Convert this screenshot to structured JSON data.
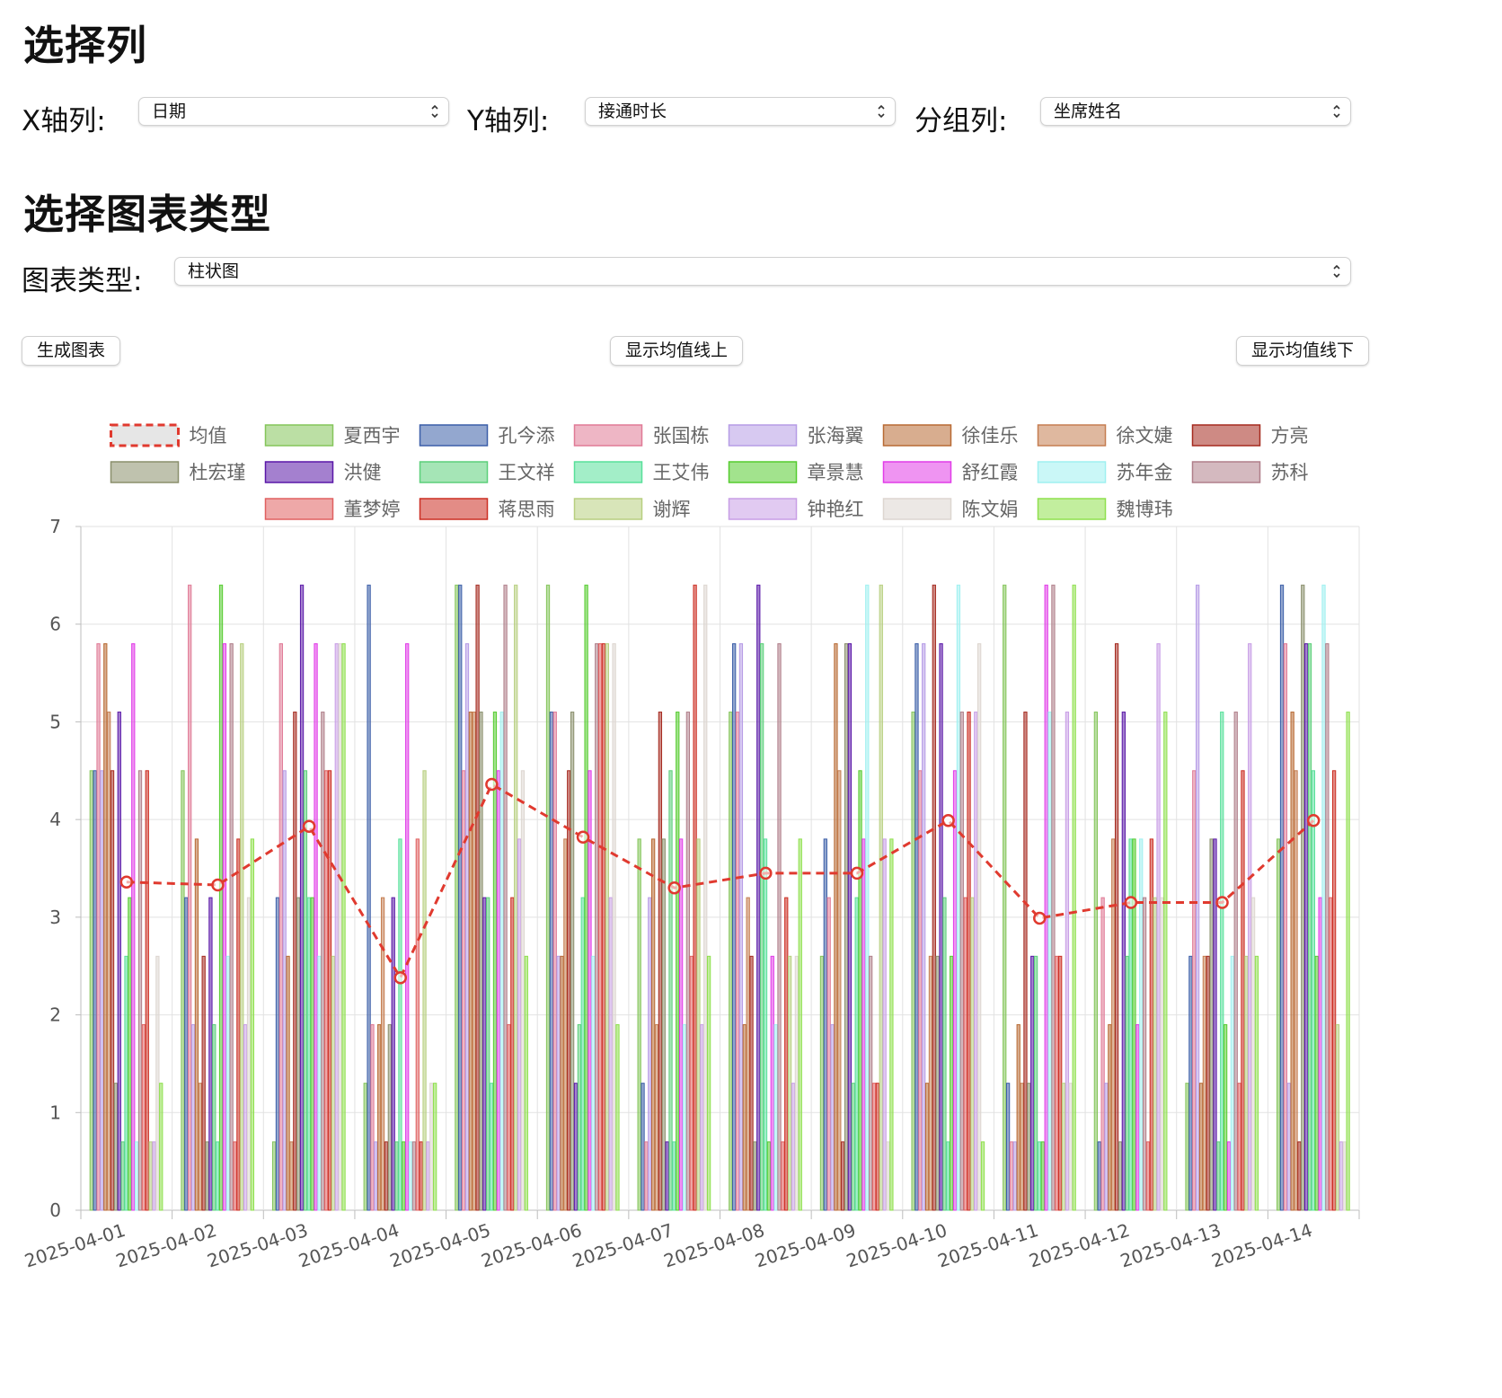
{
  "section_columns": {
    "title": "选择列"
  },
  "x_axis": {
    "label": "X轴列:",
    "value": "日期"
  },
  "y_axis": {
    "label": "Y轴列:",
    "value": "接通时长"
  },
  "group": {
    "label": "分组列:",
    "value": "坐席姓名"
  },
  "section_type": {
    "title": "选择图表类型"
  },
  "chart_type": {
    "label": "图表类型:",
    "value": "柱状图"
  },
  "buttons": {
    "generate": "生成图表",
    "above_mean": "显示均值线上",
    "below_mean": "显示均值线下"
  },
  "chart_data": {
    "type": "bar",
    "categories": [
      "2025-04-01",
      "2025-04-02",
      "2025-04-03",
      "2025-04-04",
      "2025-04-05",
      "2025-04-06",
      "2025-04-07",
      "2025-04-08",
      "2025-04-09",
      "2025-04-10",
      "2025-04-11",
      "2025-04-12",
      "2025-04-13",
      "2025-04-14"
    ],
    "ylim": [
      0,
      7
    ],
    "yticks": [
      0,
      1,
      2,
      3,
      4,
      5,
      6,
      7
    ],
    "grid": true,
    "legend_position": "top",
    "mean_line": {
      "name": "均值",
      "color": "#e03a2f",
      "style": "dashed",
      "values": [
        3.36,
        3.33,
        3.93,
        2.38,
        4.36,
        3.82,
        3.3,
        3.45,
        3.45,
        3.99,
        2.99,
        3.15,
        3.15,
        3.99
      ]
    },
    "series": [
      {
        "name": "夏西宇",
        "color": "#84c55a",
        "values": [
          4.5,
          4.5,
          0.7,
          1.3,
          6.4,
          6.4,
          3.8,
          5.1,
          2.6,
          5.1,
          6.4,
          5.1,
          1.3,
          3.8
        ]
      },
      {
        "name": "孔今添",
        "color": "#3b5ea8",
        "values": [
          4.5,
          3.2,
          3.2,
          6.4,
          6.4,
          5.1,
          1.3,
          5.8,
          3.8,
          5.8,
          1.3,
          0.7,
          2.6,
          6.4
        ]
      },
      {
        "name": "张国栋",
        "color": "#e07a96",
        "values": [
          5.8,
          6.4,
          5.8,
          1.9,
          4.5,
          5.1,
          0.7,
          5.1,
          3.2,
          4.5,
          0.7,
          3.2,
          4.5,
          5.8
        ]
      },
      {
        "name": "张海翼",
        "color": "#b69ce6",
        "values": [
          4.5,
          1.9,
          4.5,
          0.7,
          5.8,
          2.6,
          3.2,
          5.8,
          1.9,
          5.8,
          0.7,
          1.3,
          6.4,
          1.3
        ]
      },
      {
        "name": "徐佳乐",
        "color": "#b86a33",
        "values": [
          5.8,
          3.8,
          2.6,
          1.9,
          5.1,
          2.6,
          3.8,
          1.9,
          5.8,
          1.3,
          1.9,
          1.9,
          1.3,
          5.1
        ]
      },
      {
        "name": "徐文婕",
        "color": "#c57d50",
        "values": [
          5.1,
          1.3,
          0.7,
          3.2,
          5.1,
          3.8,
          1.9,
          3.2,
          4.5,
          2.6,
          1.3,
          3.8,
          2.6,
          4.5
        ]
      },
      {
        "name": "方亮",
        "color": "#a52a1f",
        "values": [
          4.5,
          2.6,
          5.1,
          0.7,
          6.4,
          4.5,
          5.1,
          2.6,
          0.7,
          6.4,
          5.1,
          5.8,
          2.6,
          0.7
        ]
      },
      {
        "name": "杜宏瑾",
        "color": "#8a8f6c",
        "values": [
          1.3,
          0.7,
          3.2,
          1.9,
          5.1,
          5.1,
          3.8,
          0.7,
          5.8,
          2.6,
          1.3,
          0.7,
          3.8,
          6.4
        ]
      },
      {
        "name": "洪健",
        "color": "#5a17a8",
        "values": [
          5.1,
          3.2,
          6.4,
          3.2,
          3.2,
          1.3,
          0.7,
          6.4,
          5.8,
          5.8,
          2.6,
          5.1,
          3.8,
          5.8
        ]
      },
      {
        "name": "王文祥",
        "color": "#5bcf7a",
        "values": [
          0.7,
          1.9,
          4.5,
          0.7,
          3.2,
          1.9,
          4.5,
          5.8,
          1.3,
          3.2,
          2.6,
          2.6,
          0.7,
          5.8
        ]
      },
      {
        "name": "王艾伟",
        "color": "#58e09a",
        "values": [
          2.6,
          0.7,
          3.2,
          3.8,
          1.3,
          3.2,
          0.7,
          3.8,
          3.2,
          0.7,
          0.7,
          3.8,
          5.1,
          4.5
        ]
      },
      {
        "name": "章景慧",
        "color": "#55cc2f",
        "values": [
          3.2,
          6.4,
          3.2,
          0.7,
          5.1,
          6.4,
          5.1,
          0.7,
          4.5,
          2.6,
          0.7,
          3.8,
          1.9,
          2.6
        ]
      },
      {
        "name": "舒红霞",
        "color": "#e13ce8",
        "values": [
          5.8,
          5.8,
          5.8,
          5.8,
          4.5,
          4.5,
          3.8,
          2.6,
          3.8,
          4.5,
          6.4,
          1.9,
          0.7,
          3.2
        ]
      },
      {
        "name": "苏年金",
        "color": "#9ff0f0",
        "values": [
          0.7,
          2.6,
          2.6,
          0.7,
          5.1,
          2.6,
          1.9,
          1.9,
          6.4,
          6.4,
          5.1,
          3.8,
          2.6,
          6.4
        ]
      },
      {
        "name": "苏科",
        "color": "#b07f8a",
        "values": [
          4.5,
          5.8,
          5.1,
          0.7,
          6.4,
          5.8,
          5.1,
          5.8,
          2.6,
          5.1,
          6.4,
          3.2,
          5.1,
          5.8
        ]
      },
      {
        "name": "董梦婷",
        "color": "#e06060",
        "values": [
          1.9,
          0.7,
          4.5,
          3.8,
          1.9,
          5.8,
          2.6,
          0.7,
          1.3,
          3.2,
          2.6,
          0.7,
          1.3,
          3.2
        ]
      },
      {
        "name": "蒋思雨",
        "color": "#cc2e22",
        "values": [
          4.5,
          3.8,
          4.5,
          0.7,
          3.2,
          5.8,
          6.4,
          3.2,
          1.3,
          5.1,
          2.6,
          3.8,
          4.5,
          4.5
        ]
      },
      {
        "name": "谢辉",
        "color": "#b8cf80",
        "values": [
          0.7,
          5.8,
          2.6,
          4.5,
          6.4,
          5.8,
          3.8,
          2.6,
          6.4,
          3.2,
          1.3,
          3.2,
          2.6,
          1.9
        ]
      },
      {
        "name": "钟艳红",
        "color": "#c89ee6",
        "values": [
          0.7,
          1.9,
          5.8,
          0.7,
          3.8,
          3.2,
          1.9,
          1.3,
          3.8,
          5.1,
          5.1,
          5.8,
          5.8,
          0.7
        ]
      },
      {
        "name": "陈文娟",
        "color": "#ddd6d0",
        "values": [
          2.6,
          3.2,
          5.8,
          1.3,
          4.5,
          5.8,
          6.4,
          2.6,
          0.7,
          5.8,
          1.3,
          3.2,
          3.2,
          0.7
        ]
      },
      {
        "name": "魏博玮",
        "color": "#8fe04e",
        "values": [
          1.3,
          3.8,
          5.8,
          1.3,
          2.6,
          1.9,
          2.6,
          3.8,
          3.8,
          0.7,
          6.4,
          5.1,
          2.6,
          5.1
        ]
      }
    ]
  }
}
